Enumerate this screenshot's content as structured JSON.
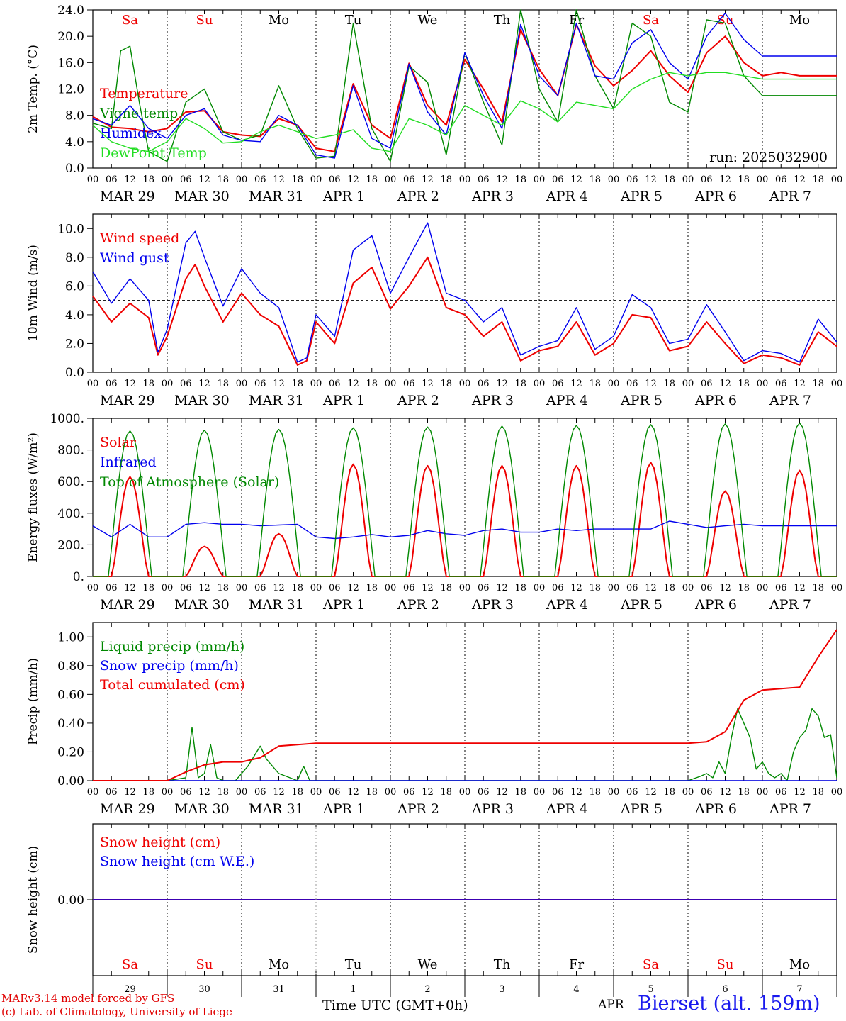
{
  "meta": {
    "run": "run: 2025032900",
    "footer_model": "MARv3.14 model forced by GFS",
    "footer_lab": "(c) Lab. of Climatology, University of Liege",
    "footer_time": "Time UTC (GMT+0h)",
    "footer_month": "APR",
    "footer_site": "Bierset (alt. 159m)"
  },
  "colors": {
    "red": "#ee0000",
    "blue": "#0000ee",
    "green": "#008800",
    "lightgreen": "#22dd22",
    "grid": "#000000"
  },
  "axis": {
    "hour_ticks": [
      "00",
      "06",
      "12",
      "18"
    ],
    "date_labels": [
      "MAR 29",
      "MAR 30",
      "MAR 31",
      "APR  1",
      "APR  2",
      "APR  3",
      "APR  4",
      "APR  5",
      "APR  6",
      "APR  7"
    ],
    "day_labels": [
      {
        "text": "Sa",
        "color": "red"
      },
      {
        "text": "Su",
        "color": "red"
      },
      {
        "text": "Mo",
        "color": "black"
      },
      {
        "text": "Tu",
        "color": "black"
      },
      {
        "text": "We",
        "color": "black"
      },
      {
        "text": "Th",
        "color": "black"
      },
      {
        "text": "Fr",
        "color": "black"
      },
      {
        "text": "Sa",
        "color": "red"
      },
      {
        "text": "Su",
        "color": "red"
      },
      {
        "text": "Mo",
        "color": "black"
      }
    ],
    "day_numbers": [
      "29",
      "30",
      "31",
      "1",
      "2",
      "3",
      "4",
      "5",
      "6",
      "7"
    ]
  },
  "chart_data": [
    {
      "id": "temp",
      "type": "line",
      "ylabel": "2m Temp. (°C)",
      "ylim": [
        0,
        24
      ],
      "ytick_labels": [
        "0.0",
        "4.0",
        "8.0",
        "12.0",
        "16.0",
        "20.0",
        "24.0"
      ],
      "show_day_labels": true,
      "x_unit": "hours since MAR 29 00 UTC",
      "series": [
        {
          "name": "Temperature",
          "color": "red",
          "x": [
            0,
            6,
            12,
            18,
            24,
            30,
            36,
            42,
            48,
            54,
            60,
            66,
            72,
            78,
            84,
            90,
            96,
            102,
            108,
            114,
            120,
            126,
            132,
            138,
            144,
            150,
            156,
            162,
            168,
            174,
            180,
            186,
            192,
            198,
            204,
            210,
            216,
            222,
            228,
            234,
            240
          ],
          "y": [
            7.8,
            6.2,
            6.0,
            5.5,
            6.0,
            8.5,
            8.7,
            5.5,
            5.0,
            4.8,
            7.5,
            6.5,
            3.0,
            2.5,
            12.8,
            6.5,
            4.5,
            15.9,
            9.5,
            6.5,
            16.5,
            12.0,
            7.0,
            21.0,
            15.0,
            11.0,
            21.8,
            15.5,
            12.5,
            14.8,
            17.8,
            14.0,
            11.5,
            17.5,
            20.0,
            16.0,
            14.0,
            14.5,
            14.0,
            14.0,
            14.0
          ]
        },
        {
          "name": "Vigne temp",
          "color": "green",
          "x": [
            0,
            6,
            9,
            12,
            15,
            18,
            24,
            30,
            36,
            42,
            48,
            54,
            60,
            66,
            72,
            78,
            84,
            90,
            96,
            102,
            108,
            114,
            120,
            126,
            132,
            138,
            144,
            150,
            156,
            162,
            168,
            174,
            180,
            186,
            192,
            198,
            204,
            210,
            216,
            222,
            228,
            234,
            240
          ],
          "y": [
            6.8,
            6.0,
            17.8,
            18.5,
            10.0,
            2.5,
            1.0,
            10.0,
            12.0,
            5.5,
            4.2,
            5.0,
            12.5,
            6.0,
            1.5,
            1.8,
            22.0,
            6.0,
            1.0,
            15.5,
            13.0,
            2.0,
            17.5,
            10.0,
            3.5,
            24.0,
            12.0,
            7.0,
            24.0,
            14.0,
            9.0,
            22.0,
            20.0,
            10.0,
            8.5,
            22.5,
            22.0,
            14.0,
            11.0,
            11.0,
            11.0,
            11.0,
            11.0
          ]
        },
        {
          "name": "Humidex",
          "color": "blue",
          "x": [
            0,
            6,
            12,
            18,
            24,
            30,
            36,
            42,
            48,
            54,
            60,
            66,
            72,
            78,
            84,
            90,
            96,
            102,
            108,
            114,
            120,
            126,
            132,
            138,
            144,
            150,
            156,
            162,
            168,
            174,
            180,
            186,
            192,
            198,
            204,
            210,
            216,
            222,
            228,
            234,
            240
          ],
          "y": [
            7.5,
            6.5,
            9.5,
            6.0,
            4.5,
            8.0,
            9.0,
            5.0,
            4.2,
            4.0,
            8.0,
            6.5,
            2.0,
            1.5,
            12.5,
            4.5,
            3.0,
            15.8,
            8.5,
            5.0,
            17.5,
            11.0,
            6.0,
            21.8,
            14.0,
            11.0,
            22.0,
            14.0,
            13.5,
            19.0,
            21.0,
            16.0,
            13.5,
            20.0,
            23.5,
            19.5,
            17.0,
            17.0,
            17.0,
            17.0,
            17.0
          ]
        },
        {
          "name": "DewPoint Temp",
          "color": "lightgreen",
          "x": [
            0,
            6,
            12,
            18,
            24,
            30,
            36,
            42,
            48,
            54,
            60,
            66,
            72,
            78,
            84,
            90,
            96,
            102,
            108,
            114,
            120,
            126,
            132,
            138,
            144,
            150,
            156,
            162,
            168,
            174,
            180,
            186,
            192,
            198,
            204,
            210,
            216,
            222,
            228,
            234,
            240
          ],
          "y": [
            6.5,
            4.0,
            3.0,
            2.5,
            4.0,
            7.5,
            6.0,
            3.8,
            4.0,
            5.5,
            6.5,
            5.5,
            4.5,
            5.0,
            5.8,
            3.0,
            2.5,
            7.5,
            6.5,
            5.0,
            9.5,
            8.0,
            6.5,
            10.2,
            9.0,
            7.0,
            10.0,
            9.5,
            9.0,
            12.0,
            13.5,
            14.5,
            14.0,
            14.5,
            14.5,
            14.0,
            13.5,
            13.5,
            13.5,
            13.5,
            13.5
          ]
        }
      ]
    },
    {
      "id": "wind",
      "type": "line",
      "ylabel": "10m Wind (m/s)",
      "ylim": [
        0,
        11
      ],
      "ytick_labels": [
        "0.0",
        "2.0",
        "4.0",
        "6.0",
        "8.0",
        "10.0"
      ],
      "ref_line": 5,
      "show_day_labels": false,
      "x_unit": "hours since MAR 29 00 UTC",
      "series": [
        {
          "name": "Wind speed",
          "color": "red",
          "x": [
            0,
            6,
            12,
            18,
            21,
            24,
            30,
            33,
            36,
            42,
            48,
            54,
            60,
            66,
            69,
            72,
            78,
            84,
            90,
            96,
            102,
            108,
            114,
            120,
            126,
            132,
            138,
            144,
            150,
            156,
            162,
            168,
            174,
            180,
            186,
            192,
            198,
            204,
            210,
            216,
            222,
            228,
            234,
            240
          ],
          "y": [
            5.3,
            3.5,
            4.8,
            3.8,
            1.2,
            2.5,
            6.5,
            7.5,
            6.0,
            3.5,
            5.5,
            4.0,
            3.2,
            0.5,
            0.8,
            3.5,
            2.0,
            6.2,
            7.3,
            4.4,
            6.0,
            8.0,
            4.5,
            4.0,
            2.5,
            3.5,
            0.8,
            1.5,
            1.8,
            3.5,
            1.2,
            2.0,
            4.0,
            3.8,
            1.5,
            1.8,
            3.5,
            2.0,
            0.6,
            1.2,
            1.0,
            0.5,
            2.8,
            1.8
          ]
        },
        {
          "name": "Wind gust",
          "color": "blue",
          "x": [
            0,
            6,
            12,
            18,
            21,
            24,
            30,
            33,
            36,
            42,
            48,
            54,
            60,
            66,
            69,
            72,
            78,
            84,
            90,
            96,
            102,
            108,
            114,
            120,
            126,
            132,
            138,
            144,
            150,
            156,
            162,
            168,
            174,
            180,
            186,
            192,
            198,
            204,
            210,
            216,
            222,
            228,
            234,
            240
          ],
          "y": [
            7.0,
            4.8,
            6.5,
            5.0,
            1.4,
            3.0,
            9.0,
            9.8,
            8.0,
            4.6,
            7.2,
            5.5,
            4.5,
            0.7,
            1.0,
            4.0,
            2.5,
            8.5,
            9.5,
            5.5,
            8.0,
            10.4,
            5.5,
            5.0,
            3.5,
            4.5,
            1.2,
            1.8,
            2.2,
            4.5,
            1.6,
            2.5,
            5.4,
            4.5,
            2.0,
            2.3,
            4.7,
            2.8,
            0.8,
            1.5,
            1.3,
            0.7,
            3.7,
            2.1
          ]
        }
      ]
    },
    {
      "id": "energy",
      "type": "line",
      "ylabel": "Energy fluxes (W/m²)",
      "ylim": [
        0,
        1000
      ],
      "ytick_labels": [
        "0.",
        "200.",
        "400.",
        "600.",
        "800.",
        "1000."
      ],
      "show_day_labels": false,
      "x_unit": "hours since MAR 29 00 UTC",
      "series": [
        {
          "name": "Solar",
          "color": "red",
          "peaks": [
            630,
            190,
            270,
            710,
            700,
            700,
            700,
            720,
            540,
            670
          ]
        },
        {
          "name": "Infrared",
          "color": "blue",
          "x": [
            0,
            6,
            12,
            18,
            24,
            30,
            36,
            42,
            48,
            54,
            60,
            66,
            72,
            78,
            84,
            90,
            96,
            102,
            108,
            114,
            120,
            126,
            132,
            138,
            144,
            150,
            156,
            162,
            168,
            174,
            180,
            186,
            192,
            198,
            204,
            210,
            216,
            222,
            228,
            234,
            240
          ],
          "y": [
            320,
            250,
            330,
            250,
            250,
            330,
            340,
            330,
            330,
            320,
            325,
            330,
            250,
            240,
            250,
            265,
            250,
            260,
            290,
            270,
            260,
            290,
            300,
            280,
            280,
            300,
            290,
            300,
            300,
            300,
            300,
            350,
            330,
            310,
            320,
            330,
            320,
            320,
            320,
            320,
            320
          ]
        },
        {
          "name": "Top of Atmosphere (Solar)",
          "color": "green",
          "peaks": [
            920,
            925,
            930,
            940,
            945,
            950,
            955,
            960,
            965,
            970
          ]
        }
      ]
    },
    {
      "id": "precip",
      "type": "line",
      "ylabel": "Precip (mm/h)",
      "ylim": [
        0,
        1.1
      ],
      "ytick_labels": [
        "0.00",
        "0.20",
        "0.40",
        "0.60",
        "0.80",
        "1.00"
      ],
      "show_day_labels": false,
      "x_unit": "hours since MAR 29 00 UTC",
      "series": [
        {
          "name": "Liquid precip (mm/h)",
          "color": "green",
          "x": [
            0,
            24,
            30,
            32,
            34,
            36,
            38,
            40,
            42,
            46,
            48,
            50,
            54,
            56,
            60,
            66,
            68,
            70,
            72,
            192,
            196,
            198,
            200,
            202,
            204,
            206,
            208,
            210,
            212,
            214,
            216,
            218,
            220,
            222,
            224,
            226,
            228,
            230,
            232,
            234,
            236,
            238,
            240
          ],
          "y": [
            0,
            0,
            0.02,
            0.37,
            0.02,
            0.05,
            0.25,
            0.02,
            0,
            0,
            0.05,
            0.1,
            0.24,
            0.15,
            0.05,
            0,
            0.1,
            0,
            0,
            0,
            0.03,
            0.05,
            0.02,
            0.13,
            0.05,
            0.3,
            0.5,
            0.4,
            0.3,
            0.08,
            0.13,
            0.05,
            0.02,
            0.05,
            0,
            0.2,
            0.3,
            0.35,
            0.5,
            0.45,
            0.3,
            0.32,
            0.02
          ]
        },
        {
          "name": "Snow precip (mm/h)",
          "color": "blue",
          "x": [
            0,
            240
          ],
          "y": [
            0,
            0
          ]
        },
        {
          "name": "Total cumulated (cm)",
          "color": "red",
          "x": [
            0,
            24,
            30,
            36,
            42,
            48,
            54,
            60,
            66,
            72,
            78,
            192,
            198,
            204,
            210,
            216,
            222,
            228,
            234,
            240
          ],
          "y": [
            0,
            0,
            0.06,
            0.11,
            0.13,
            0.13,
            0.16,
            0.24,
            0.25,
            0.26,
            0.26,
            0.26,
            0.27,
            0.34,
            0.56,
            0.63,
            0.64,
            0.65,
            0.86,
            1.05
          ]
        }
      ]
    },
    {
      "id": "snow",
      "type": "line",
      "ylabel": "Snow height (cm)",
      "ylim": [
        -1,
        1
      ],
      "ytick_labels": [
        "0.00"
      ],
      "show_day_labels": true,
      "x_unit": "hours since MAR 29 00 UTC",
      "series": [
        {
          "name": "Snow height (cm)",
          "color": "red",
          "x": [
            0,
            240
          ],
          "y": [
            0,
            0
          ]
        },
        {
          "name": "Snow height (cm W.E.)",
          "color": "blue",
          "x": [
            0,
            240
          ],
          "y": [
            0,
            0
          ]
        }
      ]
    }
  ]
}
